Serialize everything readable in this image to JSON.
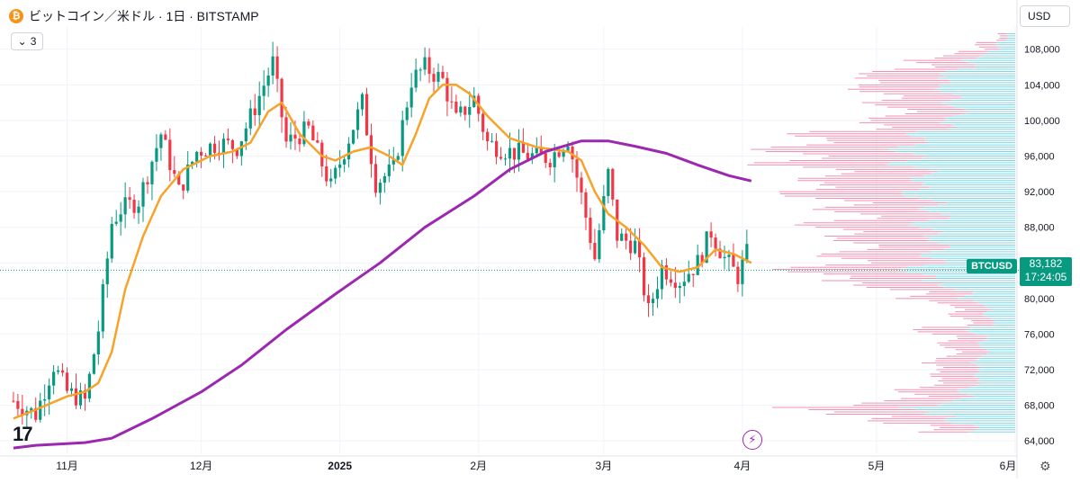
{
  "header": {
    "title": "ビットコイン／米ドル · 1日 · BITSTAMP",
    "coin_icon": "bitcoin-icon"
  },
  "indicator_toggle": {
    "count": "3",
    "icon": "chevron-down-icon"
  },
  "currency": {
    "label": "USD",
    "icon": "chevron-down-icon"
  },
  "logo": {
    "text": "17"
  },
  "price_label": {
    "symbol": "BTCUSD",
    "price": "83,182",
    "countdown": "17:24:05"
  },
  "colors": {
    "up": "#089981",
    "down": "#f23645",
    "ma_fast": "#f7a229",
    "ma_slow": "#9c27b0",
    "vp_up": "#7fd6e6",
    "vp_down": "#f290b0",
    "grid": "#f0f3fa"
  },
  "chart_data": {
    "type": "candlestick",
    "title": "ビットコイン／米ドル · 1日 · BITSTAMP",
    "y_axis": {
      "ticks": [
        64000,
        68000,
        72000,
        76000,
        80000,
        84000,
        88000,
        92000,
        96000,
        100000,
        104000,
        108000
      ],
      "tick_labels": [
        "64,000",
        "68,000",
        "72,000",
        "76,000",
        "80,000",
        "84,000",
        "88,000",
        "92,000",
        "96,000",
        "100,000",
        "104,000",
        "108,000"
      ],
      "range": [
        62500,
        110500
      ]
    },
    "x_axis": {
      "tick_labels": [
        "11月",
        "12月",
        "2025",
        "2月",
        "3月",
        "4月",
        "5月",
        "6月"
      ]
    },
    "current_price": 83182,
    "series": [
      {
        "name": "BTCUSD",
        "kind": "ohlc",
        "close_path": [
          [
            "2024-10-20",
            68500
          ],
          [
            "2024-10-25",
            67000
          ],
          [
            "2024-10-29",
            72500
          ],
          [
            "2024-11-01",
            69500
          ],
          [
            "2024-11-05",
            68500
          ],
          [
            "2024-11-08",
            76500
          ],
          [
            "2024-11-11",
            88500
          ],
          [
            "2024-11-13",
            90000
          ],
          [
            "2024-11-17",
            91000
          ],
          [
            "2024-11-22",
            98500
          ],
          [
            "2024-11-26",
            92000
          ],
          [
            "2024-11-30",
            96500
          ],
          [
            "2024-12-05",
            97500
          ],
          [
            "2024-12-09",
            97000
          ],
          [
            "2024-12-13",
            101500
          ],
          [
            "2024-12-17",
            106500
          ],
          [
            "2024-12-20",
            97500
          ],
          [
            "2024-12-25",
            99000
          ],
          [
            "2024-12-30",
            92500
          ],
          [
            "2025-01-03",
            98000
          ],
          [
            "2025-01-06",
            102000
          ],
          [
            "2025-01-09",
            93000
          ],
          [
            "2025-01-13",
            94500
          ],
          [
            "2025-01-17",
            104500
          ],
          [
            "2025-01-20",
            106000
          ],
          [
            "2025-01-24",
            104500
          ],
          [
            "2025-01-27",
            100000
          ],
          [
            "2025-01-31",
            102500
          ],
          [
            "2025-02-03",
            97500
          ],
          [
            "2025-02-08",
            96500
          ],
          [
            "2025-02-13",
            96000
          ],
          [
            "2025-02-17",
            95800
          ],
          [
            "2025-02-21",
            98000
          ],
          [
            "2025-02-24",
            91500
          ],
          [
            "2025-02-27",
            84500
          ],
          [
            "2025-03-02",
            94000
          ],
          [
            "2025-03-04",
            87000
          ],
          [
            "2025-03-08",
            86000
          ],
          [
            "2025-03-11",
            78500
          ],
          [
            "2025-03-14",
            83500
          ],
          [
            "2025-03-18",
            82000
          ],
          [
            "2025-03-22",
            84000
          ],
          [
            "2025-03-25",
            87500
          ],
          [
            "2025-03-28",
            84500
          ],
          [
            "2025-03-31",
            82500
          ],
          [
            "2025-04-02",
            85000
          ],
          [
            "2025-04-03",
            83182
          ]
        ]
      },
      {
        "name": "MA fast",
        "kind": "line",
        "points": [
          [
            "2024-10-20",
            66500
          ],
          [
            "2024-10-25",
            67500
          ],
          [
            "2024-11-01",
            69000
          ],
          [
            "2024-11-05",
            69500
          ],
          [
            "2024-11-08",
            70500
          ],
          [
            "2024-11-11",
            74000
          ],
          [
            "2024-11-14",
            81000
          ],
          [
            "2024-11-18",
            87000
          ],
          [
            "2024-11-22",
            91500
          ],
          [
            "2024-11-27",
            94500
          ],
          [
            "2024-12-03",
            96000
          ],
          [
            "2024-12-08",
            96500
          ],
          [
            "2024-12-12",
            97500
          ],
          [
            "2024-12-16",
            101000
          ],
          [
            "2024-12-19",
            102000
          ],
          [
            "2024-12-23",
            98500
          ],
          [
            "2024-12-28",
            96000
          ],
          [
            "2024-12-31",
            95500
          ],
          [
            "2025-01-04",
            96500
          ],
          [
            "2025-01-08",
            97000
          ],
          [
            "2025-01-12",
            96000
          ],
          [
            "2025-01-15",
            95000
          ],
          [
            "2025-01-18",
            98500
          ],
          [
            "2025-01-21",
            102500
          ],
          [
            "2025-01-24",
            104000
          ],
          [
            "2025-01-27",
            104000
          ],
          [
            "2025-01-30",
            103000
          ],
          [
            "2025-02-03",
            100500
          ],
          [
            "2025-02-08",
            98000
          ],
          [
            "2025-02-14",
            97000
          ],
          [
            "2025-02-21",
            96500
          ],
          [
            "2025-02-24",
            95500
          ],
          [
            "2025-02-27",
            92000
          ],
          [
            "2025-03-02",
            89500
          ],
          [
            "2025-03-06",
            88000
          ],
          [
            "2025-03-10",
            86000
          ],
          [
            "2025-03-14",
            83500
          ],
          [
            "2025-03-18",
            83000
          ],
          [
            "2025-03-22",
            83500
          ],
          [
            "2025-03-26",
            85500
          ],
          [
            "2025-03-30",
            85000
          ],
          [
            "2025-04-03",
            84000
          ]
        ]
      },
      {
        "name": "MA slow",
        "kind": "line",
        "points": [
          [
            "2024-10-20",
            63200
          ],
          [
            "2024-10-25",
            63500
          ],
          [
            "2024-11-05",
            63800
          ],
          [
            "2024-11-11",
            64300
          ],
          [
            "2024-11-20",
            66500
          ],
          [
            "2024-12-01",
            69500
          ],
          [
            "2024-12-10",
            72500
          ],
          [
            "2024-12-20",
            76500
          ],
          [
            "2024-12-31",
            80500
          ],
          [
            "2025-01-10",
            84000
          ],
          [
            "2025-01-20",
            88000
          ],
          [
            "2025-01-31",
            91500
          ],
          [
            "2025-02-08",
            94500
          ],
          [
            "2025-02-16",
            96500
          ],
          [
            "2025-02-24",
            97700
          ],
          [
            "2025-03-02",
            97700
          ],
          [
            "2025-03-08",
            97100
          ],
          [
            "2025-03-15",
            96300
          ],
          [
            "2025-03-22",
            95000
          ],
          [
            "2025-03-29",
            93800
          ],
          [
            "2025-04-03",
            93200
          ]
        ]
      }
    ],
    "volume_profile": {
      "note": "horizontal volume by price, right side",
      "levels": [
        [
          65000,
          0.4
        ],
        [
          66000,
          0.55
        ],
        [
          67000,
          0.95
        ],
        [
          68000,
          0.6
        ],
        [
          69000,
          0.45
        ],
        [
          70000,
          0.38
        ],
        [
          71000,
          0.32
        ],
        [
          72000,
          0.38
        ],
        [
          73000,
          0.3
        ],
        [
          74000,
          0.28
        ],
        [
          75000,
          0.3
        ],
        [
          76000,
          0.38
        ],
        [
          77000,
          0.22
        ],
        [
          78000,
          0.25
        ],
        [
          79000,
          0.32
        ],
        [
          80000,
          0.45
        ],
        [
          81000,
          0.6
        ],
        [
          82000,
          0.85
        ],
        [
          83000,
          0.9
        ],
        [
          84000,
          0.75
        ],
        [
          85000,
          0.72
        ],
        [
          86000,
          0.68
        ],
        [
          87000,
          0.8
        ],
        [
          88000,
          0.82
        ],
        [
          89000,
          0.7
        ],
        [
          90000,
          0.75
        ],
        [
          91000,
          0.88
        ],
        [
          92000,
          0.95
        ],
        [
          93000,
          0.82
        ],
        [
          94000,
          0.85
        ],
        [
          95000,
          1.0
        ],
        [
          96000,
          0.98
        ],
        [
          97000,
          0.95
        ],
        [
          98000,
          0.85
        ],
        [
          99000,
          0.65
        ],
        [
          100000,
          0.55
        ],
        [
          101000,
          0.52
        ],
        [
          102000,
          0.58
        ],
        [
          103000,
          0.62
        ],
        [
          104000,
          0.7
        ],
        [
          105000,
          0.58
        ],
        [
          106000,
          0.42
        ],
        [
          107000,
          0.3
        ],
        [
          108000,
          0.15
        ],
        [
          109000,
          0.08
        ]
      ]
    }
  }
}
